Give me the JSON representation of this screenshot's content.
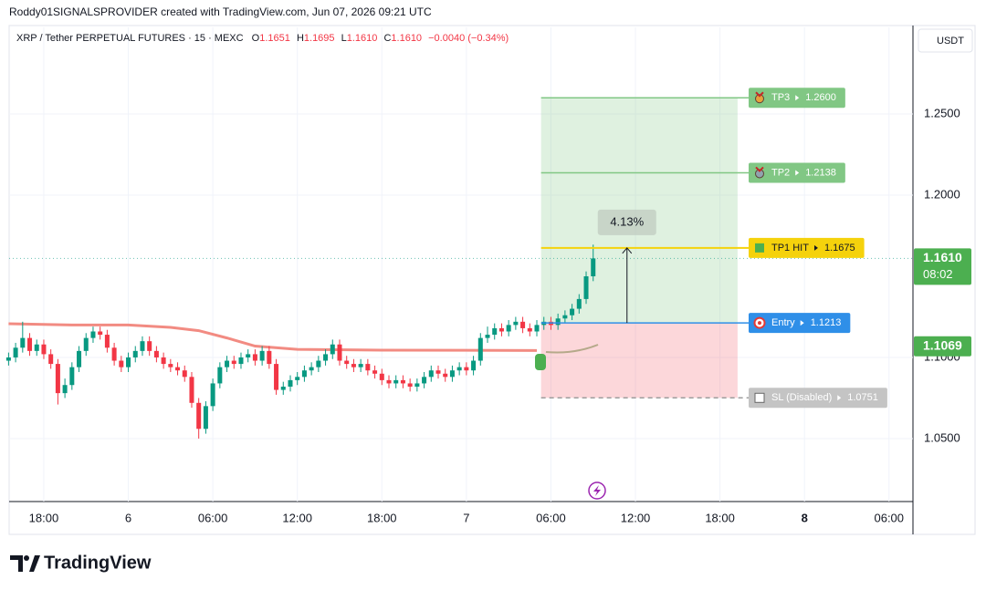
{
  "header": "Roddy01SIGNALSPROVIDER created with TradingView.com, Jun 07, 2026 09:21 UTC",
  "brand": "TradingView",
  "chart_data": {
    "type": "candlestick",
    "legend": {
      "symbol": "XRP / Tether PERPETUAL FUTURES · 15 · MEXC",
      "fields": [
        {
          "key": "O",
          "value": "1.1651"
        },
        {
          "key": "H",
          "value": "1.1695"
        },
        {
          "key": "L",
          "value": "1.1610"
        },
        {
          "key": "C",
          "value": "1.1610"
        }
      ],
      "change": "−0.0040 (−0.34%)"
    },
    "currency": "USDT",
    "up_color": "#089981",
    "down_color": "#f23645",
    "x": [
      15.5,
      16,
      16.5,
      17,
      17.5,
      18,
      18.5,
      19,
      19.5,
      20,
      20.5,
      21,
      21.5,
      22,
      22.5,
      23,
      23.5,
      24,
      24.5,
      25,
      25.5,
      26,
      26.5,
      27,
      27.5,
      28,
      28.5,
      29,
      29.5,
      30,
      30.5,
      31,
      31.5,
      32,
      32.5,
      33,
      33.5,
      34,
      34.5,
      35,
      35.5,
      36,
      36.5,
      37,
      37.5,
      38,
      38.5,
      39,
      39.5,
      40,
      40.5,
      41,
      41.5,
      42,
      42.5,
      43,
      43.5,
      44,
      44.5,
      45,
      45.5,
      46,
      46.5,
      47,
      47.5,
      48,
      48.5,
      49,
      49.5,
      50,
      50.5,
      51,
      51.5,
      52,
      52.5,
      53,
      53.5,
      54,
      54.5,
      55,
      55.5,
      56,
      56.5,
      57
    ],
    "open": [
      1.098,
      1.1,
      1.106,
      1.112,
      1.104,
      1.108,
      1.102,
      1.096,
      1.078,
      1.083,
      1.094,
      1.104,
      1.112,
      1.116,
      1.114,
      1.106,
      1.098,
      1.094,
      1.1,
      1.104,
      1.11,
      1.104,
      1.1,
      1.096,
      1.094,
      1.092,
      1.088,
      1.072,
      1.056,
      1.07,
      1.084,
      1.094,
      1.098,
      1.096,
      1.1,
      1.102,
      1.098,
      1.104,
      1.096,
      1.08,
      1.082,
      1.086,
      1.088,
      1.092,
      1.094,
      1.098,
      1.102,
      1.108,
      1.098,
      1.096,
      1.094,
      1.096,
      1.092,
      1.09,
      1.086,
      1.084,
      1.086,
      1.084,
      1.082,
      1.084,
      1.088,
      1.092,
      1.09,
      1.088,
      1.092,
      1.094,
      1.092,
      1.098,
      1.112,
      1.114,
      1.118,
      1.116,
      1.12,
      1.122,
      1.118,
      1.116,
      1.12,
      1.122,
      1.12,
      1.124,
      1.126,
      1.13,
      1.136,
      1.15
    ],
    "high": [
      1.103,
      1.109,
      1.122,
      1.115,
      1.111,
      1.111,
      1.105,
      1.099,
      1.087,
      1.097,
      1.107,
      1.115,
      1.119,
      1.119,
      1.117,
      1.109,
      1.101,
      1.103,
      1.107,
      1.113,
      1.113,
      1.107,
      1.103,
      1.099,
      1.097,
      1.095,
      1.091,
      1.075,
      1.073,
      1.087,
      1.097,
      1.101,
      1.101,
      1.103,
      1.105,
      1.105,
      1.107,
      1.107,
      1.099,
      1.085,
      1.089,
      1.091,
      1.095,
      1.097,
      1.101,
      1.105,
      1.111,
      1.111,
      1.101,
      1.099,
      1.099,
      1.099,
      1.095,
      1.093,
      1.089,
      1.089,
      1.089,
      1.087,
      1.087,
      1.091,
      1.095,
      1.095,
      1.093,
      1.095,
      1.097,
      1.097,
      1.101,
      1.115,
      1.119,
      1.121,
      1.121,
      1.123,
      1.125,
      1.125,
      1.121,
      1.123,
      1.125,
      1.125,
      1.127,
      1.129,
      1.133,
      1.139,
      1.153,
      1.1695
    ],
    "low": [
      1.095,
      1.097,
      1.103,
      1.101,
      1.101,
      1.099,
      1.093,
      1.071,
      1.075,
      1.08,
      1.091,
      1.101,
      1.109,
      1.111,
      1.103,
      1.095,
      1.091,
      1.091,
      1.097,
      1.101,
      1.101,
      1.097,
      1.093,
      1.091,
      1.089,
      1.085,
      1.069,
      1.05,
      1.053,
      1.067,
      1.081,
      1.091,
      1.093,
      1.093,
      1.097,
      1.095,
      1.095,
      1.093,
      1.077,
      1.077,
      1.079,
      1.083,
      1.085,
      1.089,
      1.091,
      1.095,
      1.099,
      1.095,
      1.093,
      1.091,
      1.091,
      1.089,
      1.087,
      1.083,
      1.081,
      1.081,
      1.081,
      1.079,
      1.079,
      1.081,
      1.085,
      1.087,
      1.085,
      1.085,
      1.089,
      1.089,
      1.089,
      1.095,
      1.109,
      1.111,
      1.113,
      1.113,
      1.117,
      1.115,
      1.113,
      1.113,
      1.117,
      1.117,
      1.117,
      1.121,
      1.123,
      1.127,
      1.133,
      1.147
    ],
    "close": [
      1.1,
      1.106,
      1.112,
      1.104,
      1.108,
      1.102,
      1.096,
      1.078,
      1.083,
      1.094,
      1.104,
      1.112,
      1.116,
      1.114,
      1.106,
      1.098,
      1.094,
      1.1,
      1.104,
      1.11,
      1.104,
      1.1,
      1.096,
      1.094,
      1.092,
      1.088,
      1.072,
      1.056,
      1.07,
      1.084,
      1.094,
      1.098,
      1.096,
      1.1,
      1.102,
      1.098,
      1.104,
      1.096,
      1.08,
      1.082,
      1.086,
      1.088,
      1.092,
      1.094,
      1.098,
      1.102,
      1.108,
      1.098,
      1.096,
      1.094,
      1.096,
      1.092,
      1.09,
      1.086,
      1.084,
      1.086,
      1.084,
      1.082,
      1.084,
      1.088,
      1.092,
      1.09,
      1.088,
      1.092,
      1.094,
      1.092,
      1.098,
      1.112,
      1.114,
      1.118,
      1.116,
      1.12,
      1.122,
      1.118,
      1.116,
      1.12,
      1.122,
      1.12,
      1.124,
      1.126,
      1.13,
      1.136,
      1.15,
      1.161
    ],
    "ema": {
      "color": "#f28b82",
      "x": [
        15.5,
        20,
        24,
        27,
        29,
        31,
        33,
        36,
        42,
        53
      ],
      "values": [
        1.1208,
        1.12,
        1.12,
        1.1185,
        1.1165,
        1.112,
        1.107,
        1.105,
        1.1045,
        1.1043
      ]
    },
    "xlim": [
      15.54,
      79.7
    ],
    "ylim": [
      1.0112,
      1.3034
    ],
    "xticks": [
      {
        "value": 18,
        "label": "18:00"
      },
      {
        "value": 24,
        "label": "6"
      },
      {
        "value": 30,
        "label": "06:00"
      },
      {
        "value": 36,
        "label": "12:00"
      },
      {
        "value": 42,
        "label": "18:00"
      },
      {
        "value": 48,
        "label": "7"
      },
      {
        "value": 54,
        "label": "06:00"
      },
      {
        "value": 60,
        "label": "12:00"
      },
      {
        "value": 66,
        "label": "18:00"
      },
      {
        "value": 72,
        "label": "8"
      },
      {
        "value": 78,
        "label": "06:00"
      }
    ],
    "yticks": [
      {
        "value": 1.25,
        "label": "1.2500"
      },
      {
        "value": 1.2,
        "label": "1.2000"
      },
      {
        "value": 1.1,
        "label": "1.1000"
      },
      {
        "value": 1.05,
        "label": "1.0500"
      }
    ],
    "grid": true,
    "price_labels": [
      {
        "value": 1.161,
        "label": "1.1610",
        "countdown": "08:02"
      },
      {
        "value": 1.1069
      }
    ],
    "position": {
      "x_start": 53.3,
      "x_end": 67.25,
      "arrow_x": 59.4,
      "percent": 4.13,
      "percent_label": "4.13%",
      "levels": [
        {
          "name": "TP3",
          "value": 1.26,
          "value_label": "1.2600",
          "color": "#81c784"
        },
        {
          "name": "TP2",
          "value": 1.2138,
          "color": "#81c784"
        },
        {
          "name": "TP1 HIT",
          "value": 1.1675,
          "color": "#f5d20c"
        },
        {
          "name": "Entry",
          "value": 1.1213,
          "color": "#2f8fe8"
        },
        {
          "name": "SL (Disabled)",
          "value": 1.0751,
          "color": "#c4c4c4"
        }
      ]
    }
  }
}
